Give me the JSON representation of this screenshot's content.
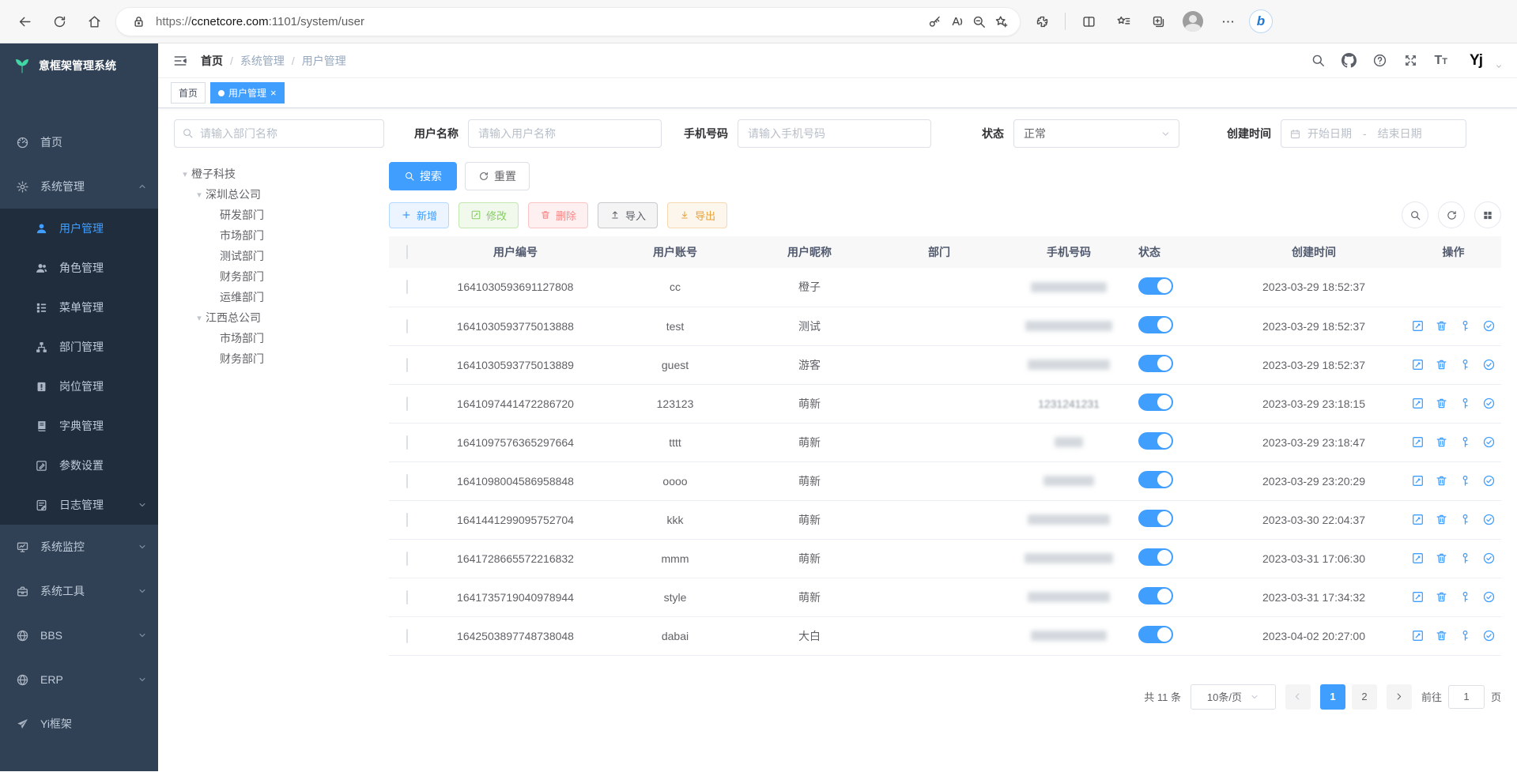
{
  "colors": {
    "accent": "#409eff",
    "sidebar_bg": "#304156",
    "submenu_bg": "#1f2d3d",
    "toggle_on": "#409eff",
    "active_tab_bg": "#409eff"
  },
  "browser": {
    "url_scheme": "https://",
    "url_host": "ccnetcore.com",
    "url_rest": ":1101/system/user"
  },
  "sidebar": {
    "title": "意框架管理系统",
    "menu": [
      {
        "label": "首页",
        "icon": "dashboard"
      },
      {
        "label": "系统管理",
        "icon": "gear",
        "caret": "up",
        "open": true,
        "children": [
          {
            "label": "用户管理",
            "icon": "user",
            "active": true
          },
          {
            "label": "角色管理",
            "icon": "users"
          },
          {
            "label": "菜单管理",
            "icon": "menutree"
          },
          {
            "label": "部门管理",
            "icon": "org"
          },
          {
            "label": "岗位管理",
            "icon": "badge"
          },
          {
            "label": "字典管理",
            "icon": "book"
          },
          {
            "label": "参数设置",
            "icon": "editpen"
          },
          {
            "label": "日志管理",
            "icon": "log",
            "caret": "down"
          }
        ]
      },
      {
        "label": "系统监控",
        "icon": "monitor",
        "caret": "down"
      },
      {
        "label": "系统工具",
        "icon": "toolbox",
        "caret": "down"
      },
      {
        "label": "BBS",
        "icon": "globe",
        "caret": "down"
      },
      {
        "label": "ERP",
        "icon": "globe",
        "caret": "down"
      },
      {
        "label": "Yi框架",
        "icon": "plane"
      }
    ]
  },
  "header": {
    "breadcrumb": [
      "首页",
      "系统管理",
      "用户管理"
    ]
  },
  "tabs": [
    {
      "label": "首页",
      "active": false,
      "closable": false
    },
    {
      "label": "用户管理",
      "active": true,
      "closable": true
    }
  ],
  "filters": {
    "dept_placeholder": "请输入部门名称",
    "username_label": "用户名称",
    "username_placeholder": "请输入用户名称",
    "phone_label": "手机号码",
    "phone_placeholder": "请输入手机号码",
    "status_label": "状态",
    "status_value": "正常",
    "created_label": "创建时间",
    "date_start": "开始日期",
    "date_sep": "-",
    "date_end": "结束日期",
    "search_label": "搜索",
    "reset_label": "重置"
  },
  "tree": [
    {
      "label": "橙子科技",
      "expanded": true,
      "children": [
        {
          "label": "深圳总公司",
          "expanded": true,
          "children": [
            {
              "label": "研发部门"
            },
            {
              "label": "市场部门"
            },
            {
              "label": "测试部门"
            },
            {
              "label": "财务部门"
            },
            {
              "label": "运维部门"
            }
          ]
        },
        {
          "label": "江西总公司",
          "expanded": true,
          "children": [
            {
              "label": "市场部门"
            },
            {
              "label": "财务部门"
            }
          ]
        }
      ]
    }
  ],
  "toolbar": [
    {
      "label": "新增",
      "icon": "plus",
      "type": "primary"
    },
    {
      "label": "修改",
      "icon": "editsq",
      "type": "success"
    },
    {
      "label": "删除",
      "icon": "trash",
      "type": "danger"
    },
    {
      "label": "导入",
      "icon": "upload",
      "type": "info"
    },
    {
      "label": "导出",
      "icon": "download",
      "type": "warning"
    }
  ],
  "table": {
    "headers": [
      "用户编号",
      "用户账号",
      "用户昵称",
      "部门",
      "手机号码",
      "状态",
      "创建时间",
      "操作"
    ],
    "op_icons": [
      "editsq",
      "trash",
      "key",
      "checkcircle"
    ],
    "rows": [
      {
        "id": "1641030593691127808",
        "account": "cc",
        "nickname": "橙子",
        "dept": "",
        "phone_text": "",
        "phone_mask_width": 96,
        "status_on": true,
        "created": "2023-03-29 18:52:37",
        "has_ops": false
      },
      {
        "id": "1641030593775013888",
        "account": "test",
        "nickname": "测试",
        "dept": "",
        "phone_text": "",
        "phone_mask_width": 110,
        "status_on": true,
        "created": "2023-03-29 18:52:37",
        "has_ops": true
      },
      {
        "id": "1641030593775013889",
        "account": "guest",
        "nickname": "游客",
        "dept": "",
        "phone_text": "",
        "phone_mask_width": 104,
        "status_on": true,
        "created": "2023-03-29 18:52:37",
        "has_ops": true
      },
      {
        "id": "1641097441472286720",
        "account": "123123",
        "nickname": "萌新",
        "dept": "",
        "phone_text": "1231241231",
        "phone_mask_width": 0,
        "status_on": true,
        "created": "2023-03-29 23:18:15",
        "has_ops": true
      },
      {
        "id": "1641097576365297664",
        "account": "tttt",
        "nickname": "萌新",
        "dept": "",
        "phone_text": "",
        "phone_mask_width": 36,
        "status_on": true,
        "created": "2023-03-29 23:18:47",
        "has_ops": true
      },
      {
        "id": "1641098004586958848",
        "account": "oooo",
        "nickname": "萌新",
        "dept": "",
        "phone_text": "",
        "phone_mask_width": 64,
        "status_on": true,
        "created": "2023-03-29 23:20:29",
        "has_ops": true
      },
      {
        "id": "1641441299095752704",
        "account": "kkk",
        "nickname": "萌新",
        "dept": "",
        "phone_text": "",
        "phone_mask_width": 104,
        "status_on": true,
        "created": "2023-03-30 22:04:37",
        "has_ops": true
      },
      {
        "id": "1641728665572216832",
        "account": "mmm",
        "nickname": "萌新",
        "dept": "",
        "phone_text": "",
        "phone_mask_width": 112,
        "status_on": true,
        "created": "2023-03-31 17:06:30",
        "has_ops": true
      },
      {
        "id": "1641735719040978944",
        "account": "style",
        "nickname": "萌新",
        "dept": "",
        "phone_text": "",
        "phone_mask_width": 104,
        "status_on": true,
        "created": "2023-03-31 17:34:32",
        "has_ops": true
      },
      {
        "id": "1642503897748738048",
        "account": "dabai",
        "nickname": "大白",
        "dept": "",
        "phone_text": "",
        "phone_mask_width": 96,
        "status_on": true,
        "created": "2023-04-02 20:27:00",
        "has_ops": true
      }
    ]
  },
  "pagination": {
    "total_label": "共 11 条",
    "page_size": "10条/页",
    "pages": [
      "1",
      "2"
    ],
    "current": "1",
    "goto_label": "前往",
    "goto_value": "1",
    "unit_label": "页"
  }
}
